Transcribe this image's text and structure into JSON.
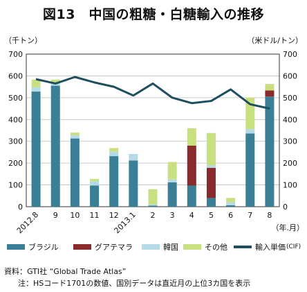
{
  "title": "図13　中国の粗糖・白糖輸入の推移",
  "left_unit": "（千トン）",
  "right_unit": "（米ドル/トン）",
  "x_unit": "（年.月）",
  "legend": {
    "brazil": "ブラジル",
    "guatemala": "グアテマラ",
    "korea": "韓国",
    "others": "その他",
    "price": "輸入単価",
    "price_suffix": "(CIF)"
  },
  "source": {
    "line1": "資料：GTI社 “Global Trade Atlas”",
    "line2": "注：HSコード1701の数値、国別データは直近月の上位3カ国を表示"
  },
  "colors": {
    "brazil": "#3a7f95",
    "guatemala": "#8b2a2a",
    "korea": "#b6dbe8",
    "others": "#c8e080",
    "price": "#1f4e5f",
    "grid": "#bbbbbb",
    "axis": "#333333"
  },
  "chart_data": {
    "type": "bar",
    "stacked": true,
    "categories": [
      "2012.8",
      "9",
      "10",
      "11",
      "12",
      "2013.1",
      "2",
      "3",
      "4",
      "5",
      "6",
      "7",
      "8"
    ],
    "series": [
      {
        "name": "ブラジル",
        "axis": "left",
        "values": [
          528,
          555,
          313,
          97,
          232,
          212,
          5,
          112,
          97,
          40,
          7,
          336,
          505
        ]
      },
      {
        "name": "グアテマラ",
        "axis": "left",
        "values": [
          0,
          0,
          0,
          0,
          0,
          0,
          0,
          0,
          183,
          138,
          0,
          0,
          28
        ]
      },
      {
        "name": "韓国",
        "axis": "left",
        "values": [
          20,
          13,
          15,
          20,
          20,
          30,
          5,
          13,
          0,
          12,
          13,
          20,
          0
        ]
      },
      {
        "name": "その他",
        "axis": "left",
        "values": [
          35,
          15,
          12,
          10,
          17,
          0,
          70,
          80,
          80,
          148,
          20,
          145,
          30
        ]
      }
    ],
    "line": {
      "name": "輸入単価(CIF)",
      "axis": "right",
      "values": [
        585,
        565,
        595,
        570,
        550,
        510,
        565,
        500,
        475,
        485,
        538,
        470,
        450
      ]
    },
    "ylim_left": [
      0,
      700
    ],
    "ylim_right": [
      0,
      700
    ],
    "yticks": [
      0,
      100,
      200,
      300,
      400,
      500,
      600,
      700
    ],
    "grid": true,
    "legend_position": "bottom"
  }
}
